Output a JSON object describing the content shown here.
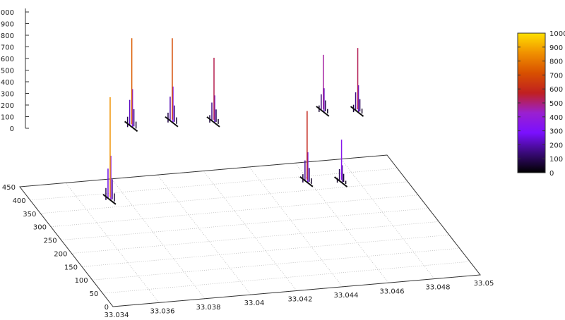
{
  "chart_data": {
    "type": "3d-impulse",
    "title": "",
    "xlabel": "",
    "ylabel": "",
    "zlabel": "",
    "xlim": [
      33.034,
      33.05
    ],
    "ylim": [
      0,
      450
    ],
    "zlim": [
      0,
      1000
    ],
    "x_ticks": [
      "33.034",
      "33.036",
      "33.038",
      "33.04",
      "33.042",
      "33.044",
      "33.046",
      "33.048",
      "33.05"
    ],
    "y_ticks": [
      "0",
      "50",
      "100",
      "150",
      "200",
      "250",
      "300",
      "350",
      "400",
      "450"
    ],
    "z_ticks": [
      "0",
      "100",
      "200",
      "300",
      "400",
      "500",
      "600",
      "700",
      "800",
      "900",
      "1000"
    ],
    "colorbar": {
      "range": [
        0,
        1000
      ],
      "ticks": [
        "0",
        "100",
        "200",
        "300",
        "400",
        "500",
        "600",
        "700",
        "800",
        "900",
        "1000"
      ],
      "colors": [
        "#000000",
        "#3a0a7a",
        "#7a10ff",
        "#9a20d0",
        "#c02020",
        "#d85000",
        "#f09000",
        "#ffe000"
      ]
    },
    "grid": true,
    "peaks": [
      {
        "x": 33.0355,
        "y": 180,
        "z": 860
      },
      {
        "x": 33.0387,
        "y": 430,
        "z": 740
      },
      {
        "x": 33.0405,
        "y": 434,
        "z": 700
      },
      {
        "x": 33.0422,
        "y": 421,
        "z": 533
      },
      {
        "x": 33.0441,
        "y": 182,
        "z": 590
      },
      {
        "x": 33.0455,
        "y": 171,
        "z": 345
      },
      {
        "x": 33.047,
        "y": 425,
        "z": 467
      },
      {
        "x": 33.0484,
        "y": 414,
        "z": 527
      }
    ]
  }
}
